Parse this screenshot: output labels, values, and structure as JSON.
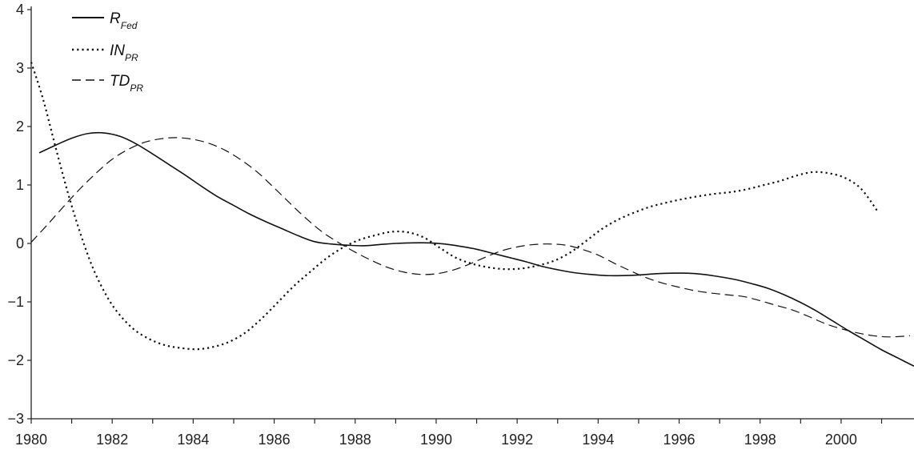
{
  "chart_data": {
    "type": "line",
    "title": "",
    "xlabel": "",
    "ylabel": "",
    "xlim": [
      1980,
      2001.8
    ],
    "ylim": [
      -3,
      4
    ],
    "grid": false,
    "legend_position": "top-left",
    "x_ticks": [
      "1980",
      "1982",
      "1984",
      "1986",
      "1988",
      "1990",
      "1992",
      "1994",
      "1996",
      "1998",
      "2000"
    ],
    "y_ticks": [
      "4",
      "3",
      "2",
      "1",
      "0",
      "−1",
      "−2",
      "−3"
    ],
    "series": [
      {
        "name": "R_Fed",
        "label_main": "R",
        "label_sub": "Fed",
        "style": "solid",
        "color": "#111111",
        "points": [
          [
            1980.2,
            1.55
          ],
          [
            1980.6,
            1.68
          ],
          [
            1981.0,
            1.8
          ],
          [
            1981.4,
            1.88
          ],
          [
            1981.8,
            1.89
          ],
          [
            1982.2,
            1.83
          ],
          [
            1982.6,
            1.7
          ],
          [
            1983.0,
            1.53
          ],
          [
            1983.4,
            1.35
          ],
          [
            1983.8,
            1.17
          ],
          [
            1984.2,
            0.98
          ],
          [
            1984.6,
            0.8
          ],
          [
            1985.0,
            0.65
          ],
          [
            1985.4,
            0.5
          ],
          [
            1985.8,
            0.37
          ],
          [
            1986.2,
            0.25
          ],
          [
            1986.6,
            0.13
          ],
          [
            1987.0,
            0.03
          ],
          [
            1987.4,
            -0.01
          ],
          [
            1987.8,
            -0.03
          ],
          [
            1988.2,
            -0.04
          ],
          [
            1988.6,
            -0.02
          ],
          [
            1989.0,
            0.0
          ],
          [
            1989.4,
            0.01
          ],
          [
            1989.8,
            0.01
          ],
          [
            1990.2,
            -0.01
          ],
          [
            1990.6,
            -0.05
          ],
          [
            1991.0,
            -0.1
          ],
          [
            1991.4,
            -0.17
          ],
          [
            1991.8,
            -0.24
          ],
          [
            1992.2,
            -0.31
          ],
          [
            1992.6,
            -0.39
          ],
          [
            1993.0,
            -0.45
          ],
          [
            1993.4,
            -0.5
          ],
          [
            1993.8,
            -0.53
          ],
          [
            1994.2,
            -0.55
          ],
          [
            1994.6,
            -0.55
          ],
          [
            1995.0,
            -0.54
          ],
          [
            1995.4,
            -0.52
          ],
          [
            1995.8,
            -0.51
          ],
          [
            1996.2,
            -0.51
          ],
          [
            1996.6,
            -0.53
          ],
          [
            1997.0,
            -0.57
          ],
          [
            1997.4,
            -0.62
          ],
          [
            1997.8,
            -0.69
          ],
          [
            1998.2,
            -0.77
          ],
          [
            1998.6,
            -0.88
          ],
          [
            1999.0,
            -1.01
          ],
          [
            1999.4,
            -1.16
          ],
          [
            1999.8,
            -1.33
          ],
          [
            2000.2,
            -1.5
          ],
          [
            2000.6,
            -1.66
          ],
          [
            2001.0,
            -1.82
          ],
          [
            2001.4,
            -1.96
          ],
          [
            2001.8,
            -2.1
          ]
        ]
      },
      {
        "name": "IN_PR",
        "label_main": "IN",
        "label_sub": "PR",
        "style": "dotted",
        "color": "#111111",
        "points": [
          [
            1980.0,
            3.1
          ],
          [
            1980.3,
            2.45
          ],
          [
            1980.6,
            1.65
          ],
          [
            1980.9,
            0.88
          ],
          [
            1981.2,
            0.2
          ],
          [
            1981.5,
            -0.38
          ],
          [
            1981.8,
            -0.82
          ],
          [
            1982.1,
            -1.15
          ],
          [
            1982.5,
            -1.45
          ],
          [
            1982.9,
            -1.63
          ],
          [
            1983.3,
            -1.74
          ],
          [
            1983.7,
            -1.79
          ],
          [
            1984.1,
            -1.81
          ],
          [
            1984.5,
            -1.77
          ],
          [
            1984.9,
            -1.68
          ],
          [
            1985.3,
            -1.52
          ],
          [
            1985.7,
            -1.28
          ],
          [
            1986.1,
            -1.0
          ],
          [
            1986.5,
            -0.72
          ],
          [
            1986.9,
            -0.48
          ],
          [
            1987.3,
            -0.25
          ],
          [
            1987.7,
            -0.07
          ],
          [
            1988.1,
            0.06
          ],
          [
            1988.5,
            0.14
          ],
          [
            1988.9,
            0.2
          ],
          [
            1989.3,
            0.19
          ],
          [
            1989.7,
            0.1
          ],
          [
            1990.1,
            -0.08
          ],
          [
            1990.5,
            -0.25
          ],
          [
            1990.9,
            -0.35
          ],
          [
            1991.3,
            -0.41
          ],
          [
            1991.7,
            -0.44
          ],
          [
            1992.1,
            -0.43
          ],
          [
            1992.5,
            -0.38
          ],
          [
            1992.9,
            -0.3
          ],
          [
            1993.3,
            -0.16
          ],
          [
            1993.7,
            0.04
          ],
          [
            1994.1,
            0.25
          ],
          [
            1994.5,
            0.41
          ],
          [
            1994.9,
            0.53
          ],
          [
            1995.3,
            0.63
          ],
          [
            1995.7,
            0.7
          ],
          [
            1996.1,
            0.76
          ],
          [
            1996.5,
            0.81
          ],
          [
            1996.9,
            0.85
          ],
          [
            1997.3,
            0.88
          ],
          [
            1997.7,
            0.93
          ],
          [
            1998.1,
            1.0
          ],
          [
            1998.5,
            1.07
          ],
          [
            1998.9,
            1.16
          ],
          [
            1999.3,
            1.22
          ],
          [
            1999.7,
            1.2
          ],
          [
            2000.1,
            1.12
          ],
          [
            2000.5,
            0.93
          ],
          [
            2000.9,
            0.55
          ]
        ]
      },
      {
        "name": "TD_PR",
        "label_main": "TD",
        "label_sub": "PR",
        "style": "dashed",
        "color": "#111111",
        "points": [
          [
            1980.0,
            0.02
          ],
          [
            1980.4,
            0.32
          ],
          [
            1980.8,
            0.63
          ],
          [
            1981.2,
            0.93
          ],
          [
            1981.6,
            1.2
          ],
          [
            1982.0,
            1.44
          ],
          [
            1982.4,
            1.61
          ],
          [
            1982.8,
            1.73
          ],
          [
            1983.2,
            1.79
          ],
          [
            1983.6,
            1.81
          ],
          [
            1984.0,
            1.78
          ],
          [
            1984.4,
            1.71
          ],
          [
            1984.8,
            1.59
          ],
          [
            1985.2,
            1.42
          ],
          [
            1985.6,
            1.21
          ],
          [
            1986.0,
            0.95
          ],
          [
            1986.4,
            0.68
          ],
          [
            1986.8,
            0.42
          ],
          [
            1987.2,
            0.19
          ],
          [
            1987.6,
            0.01
          ],
          [
            1988.0,
            -0.15
          ],
          [
            1988.4,
            -0.29
          ],
          [
            1988.8,
            -0.41
          ],
          [
            1989.2,
            -0.49
          ],
          [
            1989.6,
            -0.53
          ],
          [
            1990.0,
            -0.52
          ],
          [
            1990.4,
            -0.46
          ],
          [
            1990.8,
            -0.36
          ],
          [
            1991.2,
            -0.24
          ],
          [
            1991.6,
            -0.13
          ],
          [
            1992.0,
            -0.06
          ],
          [
            1992.4,
            -0.02
          ],
          [
            1992.8,
            -0.01
          ],
          [
            1993.2,
            -0.03
          ],
          [
            1993.6,
            -0.1
          ],
          [
            1994.0,
            -0.2
          ],
          [
            1994.4,
            -0.34
          ],
          [
            1994.8,
            -0.47
          ],
          [
            1995.2,
            -0.59
          ],
          [
            1995.6,
            -0.68
          ],
          [
            1996.0,
            -0.75
          ],
          [
            1996.4,
            -0.81
          ],
          [
            1996.8,
            -0.85
          ],
          [
            1997.2,
            -0.88
          ],
          [
            1997.6,
            -0.91
          ],
          [
            1998.0,
            -0.98
          ],
          [
            1998.4,
            -1.06
          ],
          [
            1998.8,
            -1.14
          ],
          [
            1999.2,
            -1.25
          ],
          [
            1999.6,
            -1.37
          ],
          [
            2000.0,
            -1.46
          ],
          [
            2000.4,
            -1.53
          ],
          [
            2000.8,
            -1.58
          ],
          [
            2001.2,
            -1.6
          ],
          [
            2001.7,
            -1.58
          ]
        ]
      }
    ]
  }
}
